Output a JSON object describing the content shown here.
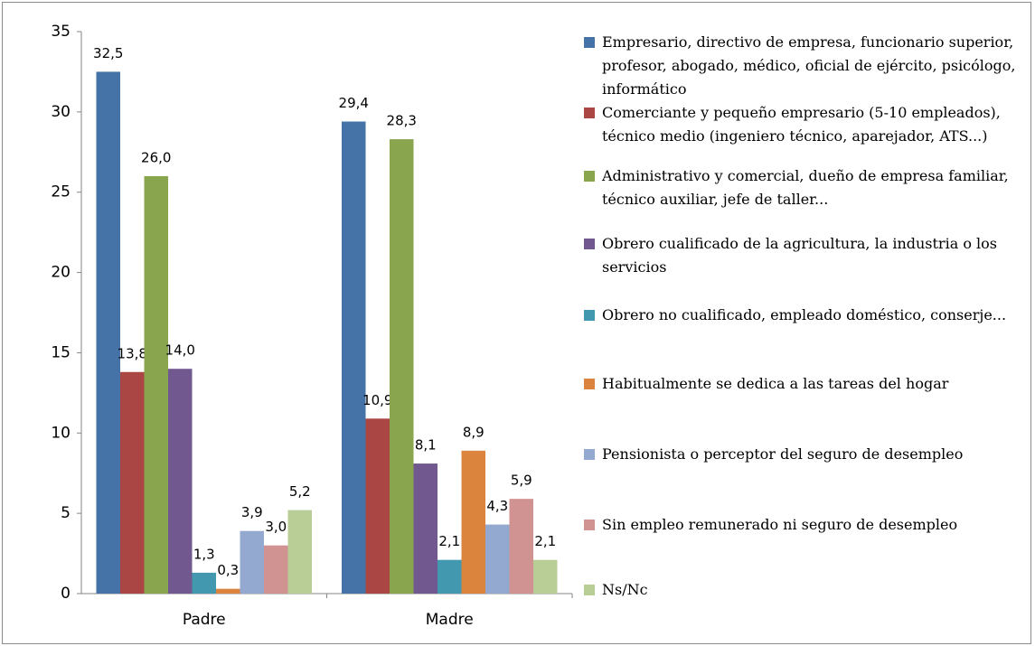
{
  "chart_data": {
    "type": "bar",
    "categories": [
      "Padre",
      "Madre"
    ],
    "ylim": [
      0,
      35
    ],
    "yticks": [
      0,
      5,
      10,
      15,
      20,
      25,
      30,
      35
    ],
    "series": [
      {
        "name": "Empresario, directivo de empresa, funcionario superior, profesor, abogado, médico, oficial de ejército, psicólogo, informático",
        "color": "#4572a7",
        "values": [
          32.5,
          29.4
        ],
        "value_labels": [
          "32,5",
          "29,4"
        ]
      },
      {
        "name": "Comerciante y pequeño empresario (5-10 empleados), técnico medio (ingeniero técnico, aparejador, ATS...)",
        "color": "#aa4643",
        "values": [
          13.8,
          10.9
        ],
        "value_labels": [
          "13,8",
          "10,9"
        ]
      },
      {
        "name": "Administrativo y comercial, dueño de empresa familiar, técnico auxiliar, jefe de taller...",
        "color": "#89a54e",
        "values": [
          26.0,
          28.3
        ],
        "value_labels": [
          "26,0",
          "28,3"
        ]
      },
      {
        "name": "Obrero cualificado de la agricultura, la industria o los servicios",
        "color": "#71588f",
        "values": [
          14.0,
          8.1
        ],
        "value_labels": [
          "14,0",
          "8,1"
        ]
      },
      {
        "name": "Obrero no cualificado, empleado doméstico, conserje...",
        "color": "#4198af",
        "values": [
          1.3,
          2.1
        ],
        "value_labels": [
          "1,3",
          "2,1"
        ]
      },
      {
        "name": "Habitualmente se dedica a las tareas del hogar",
        "color": "#db843d",
        "values": [
          0.3,
          8.9
        ],
        "value_labels": [
          "0,3",
          "8,9"
        ]
      },
      {
        "name": "Pensionista o perceptor del seguro de desempleo",
        "color": "#93a9cf",
        "values": [
          3.9,
          4.3
        ],
        "value_labels": [
          "3,9",
          "4,3"
        ]
      },
      {
        "name": "Sin empleo remunerado ni seguro de desempleo",
        "color": "#d19392",
        "values": [
          3.0,
          5.9
        ],
        "value_labels": [
          "3,0",
          "5,9"
        ]
      },
      {
        "name": "Ns/Nc",
        "color": "#b9cd96",
        "values": [
          5.2,
          2.1
        ],
        "value_labels": [
          "5,2",
          "2,1"
        ]
      }
    ]
  }
}
